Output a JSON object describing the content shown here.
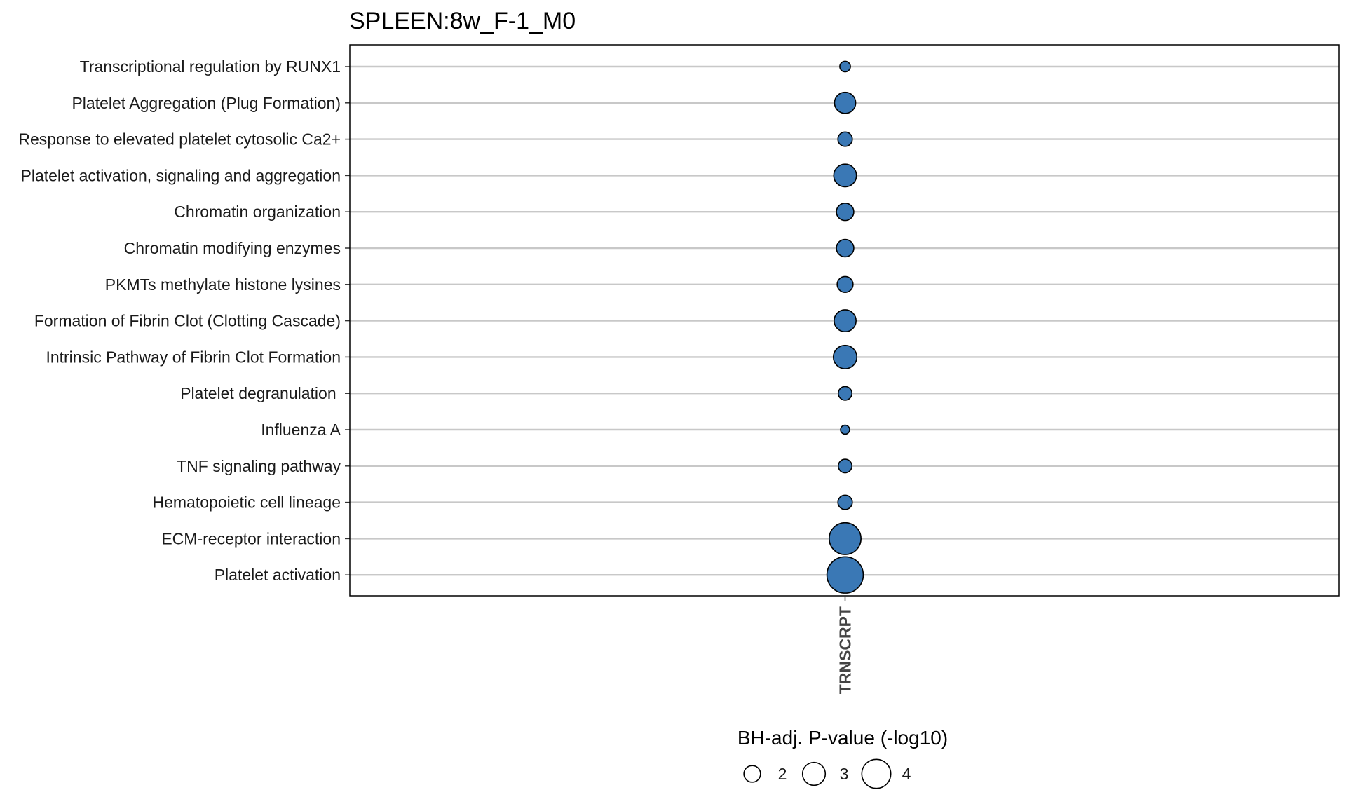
{
  "chart_data": {
    "type": "scatter",
    "title": "SPLEEN:8w_F-1_M0",
    "xlabel": "",
    "ylabel": "",
    "x_categories": [
      "TRNSCRPT"
    ],
    "y_categories": [
      "Transcriptional regulation by RUNX1",
      "Platelet Aggregation (Plug Formation)",
      "Response to elevated platelet cytosolic Ca2+",
      "Platelet activation, signaling and aggregation",
      "Chromatin organization",
      "Chromatin modifying enzymes",
      "PKMTs methylate histone lysines",
      "Formation of Fibrin Clot (Clotting Cascade)",
      "Intrinsic Pathway of Fibrin Clot Formation",
      "Platelet degranulation ",
      "Influenza A",
      "TNF signaling pathway",
      "Hematopoietic cell lineage",
      "ECM-receptor interaction",
      "Platelet activation"
    ],
    "points": [
      {
        "x": "TRNSCRPT",
        "y": "Transcriptional regulation by RUNX1",
        "size": 1.4
      },
      {
        "x": "TRNSCRPT",
        "y": "Platelet Aggregation (Plug Formation)",
        "size": 2.8
      },
      {
        "x": "TRNSCRPT",
        "y": "Response to elevated platelet cytosolic Ca2+",
        "size": 1.9
      },
      {
        "x": "TRNSCRPT",
        "y": "Platelet activation, signaling and aggregation",
        "size": 3.0
      },
      {
        "x": "TRNSCRPT",
        "y": "Chromatin organization",
        "size": 2.3
      },
      {
        "x": "TRNSCRPT",
        "y": "Chromatin modifying enzymes",
        "size": 2.3
      },
      {
        "x": "TRNSCRPT",
        "y": "PKMTs methylate histone lysines",
        "size": 2.1
      },
      {
        "x": "TRNSCRPT",
        "y": "Formation of Fibrin Clot (Clotting Cascade)",
        "size": 2.9
      },
      {
        "x": "TRNSCRPT",
        "y": "Intrinsic Pathway of Fibrin Clot Formation",
        "size": 3.1
      },
      {
        "x": "TRNSCRPT",
        "y": "Platelet degranulation ",
        "size": 1.8
      },
      {
        "x": "TRNSCRPT",
        "y": "Influenza A",
        "size": 1.2
      },
      {
        "x": "TRNSCRPT",
        "y": "TNF signaling pathway",
        "size": 1.8
      },
      {
        "x": "TRNSCRPT",
        "y": "Hematopoietic cell lineage",
        "size": 1.9
      },
      {
        "x": "TRNSCRPT",
        "y": "ECM-receptor interaction",
        "size": 4.2
      },
      {
        "x": "TRNSCRPT",
        "y": "Platelet activation",
        "size": 4.8
      }
    ],
    "size_legend": {
      "title": "BH-adj. P-value (-log10)",
      "values": [
        2,
        3,
        4
      ],
      "labels": [
        "2",
        "3",
        "4"
      ]
    },
    "point_fill": "#3a78b5",
    "point_stroke": "#000000",
    "grid": "horizontal",
    "legend_position": "bottom"
  }
}
